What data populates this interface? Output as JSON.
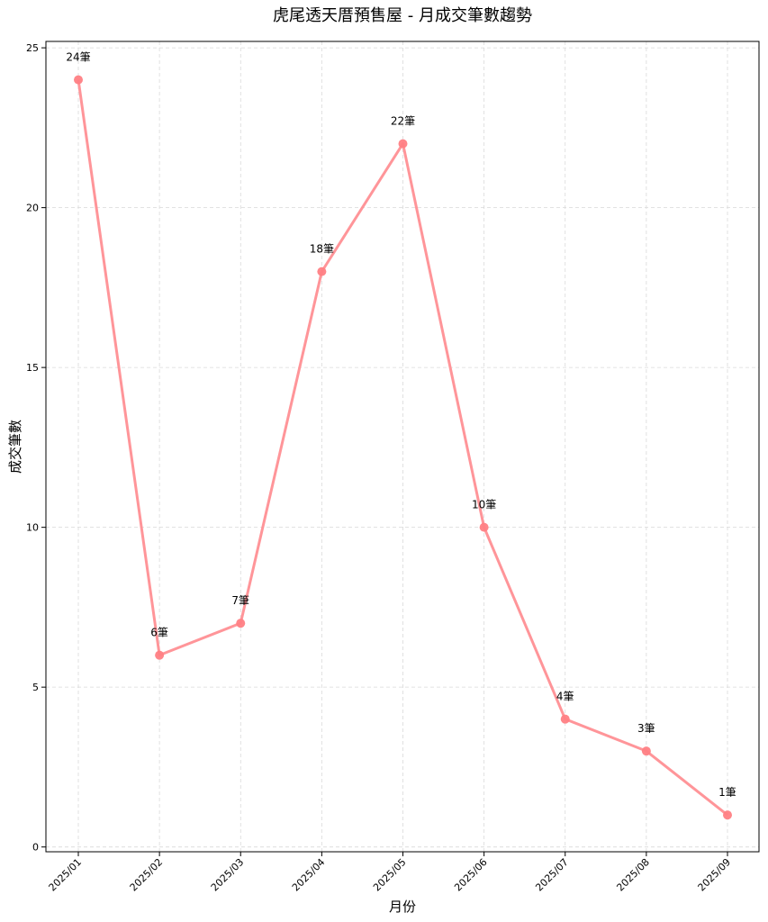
{
  "chart_data": {
    "type": "line",
    "title": "虎尾透天厝預售屋 - 月成交筆數趨勢",
    "xlabel": "月份",
    "ylabel": "成交筆數",
    "categories": [
      "2025/01",
      "2025/02",
      "2025/03",
      "2025/04",
      "2025/05",
      "2025/06",
      "2025/07",
      "2025/08",
      "2025/09"
    ],
    "series": [
      {
        "values": [
          24,
          6,
          7,
          18,
          22,
          10,
          4,
          3,
          1
        ]
      }
    ],
    "data_labels": [
      "24筆",
      "6筆",
      "7筆",
      "18筆",
      "22筆",
      "10筆",
      "4筆",
      "3筆",
      "1筆"
    ],
    "yticks": [
      0,
      5,
      10,
      15,
      20,
      25
    ],
    "ylim": [
      -0.15,
      25.2
    ],
    "grid": true,
    "line_color": "#ff8a8e"
  }
}
